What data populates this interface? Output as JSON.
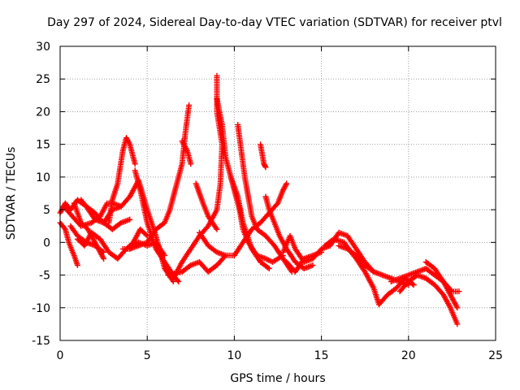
{
  "chart_data": {
    "type": "scatter",
    "title": "Day 297 of 2024, Sidereal Day-to-day VTEC variation (SDTVAR) for receiver ptvl",
    "xlabel": "GPS time / hours",
    "ylabel": "SDTVAR / TECUs",
    "xlim": [
      0,
      25
    ],
    "ylim": [
      -15,
      30
    ],
    "xticks": [
      0,
      5,
      10,
      15,
      20,
      25
    ],
    "yticks": [
      -15,
      -10,
      -5,
      0,
      5,
      10,
      15,
      20,
      25,
      30
    ],
    "grid": true,
    "marker": "+",
    "color": "#ff0000",
    "tracks": [
      [
        [
          0.0,
          4.5
        ],
        [
          0.3,
          6.0
        ],
        [
          0.6,
          5.0
        ],
        [
          1.0,
          6.5
        ],
        [
          1.5,
          5.5
        ],
        [
          2.0,
          4.5
        ],
        [
          2.5,
          3.0
        ],
        [
          3.0,
          5.0
        ],
        [
          3.5,
          5.5
        ],
        [
          4.0,
          7.0
        ],
        [
          4.5,
          9.5
        ],
        [
          5.0,
          5.0
        ],
        [
          5.5,
          1.0
        ],
        [
          6.0,
          -4.0
        ],
        [
          6.5,
          -6.0
        ]
      ],
      [
        [
          0.0,
          3.0
        ],
        [
          0.3,
          2.0
        ],
        [
          0.5,
          0.0
        ],
        [
          0.8,
          -2.0
        ],
        [
          1.0,
          -3.5
        ]
      ],
      [
        [
          0.2,
          5.5
        ],
        [
          0.7,
          4.0
        ],
        [
          1.2,
          2.5
        ],
        [
          1.8,
          3.0
        ],
        [
          2.3,
          4.0
        ],
        [
          2.7,
          6.0
        ],
        [
          3.0,
          6.0
        ],
        [
          3.5,
          5.5
        ]
      ],
      [
        [
          0.8,
          6.0
        ],
        [
          1.2,
          3.0
        ],
        [
          1.6,
          2.0
        ],
        [
          2.2,
          -1.0
        ],
        [
          2.5,
          -2.5
        ]
      ],
      [
        [
          1.0,
          0.5
        ],
        [
          1.4,
          -0.5
        ],
        [
          1.8,
          1.5
        ],
        [
          2.3,
          0.5
        ],
        [
          2.8,
          -1.5
        ],
        [
          3.3,
          -2.5
        ],
        [
          3.8,
          -1.0
        ],
        [
          4.2,
          0.0
        ],
        [
          4.6,
          2.0
        ],
        [
          5.0,
          1.0
        ]
      ],
      [
        [
          1.2,
          6.5
        ],
        [
          1.5,
          5.5
        ],
        [
          2.0,
          3.5
        ],
        [
          2.5,
          3.0
        ],
        [
          3.0,
          2.0
        ],
        [
          3.5,
          3.0
        ],
        [
          4.0,
          3.5
        ]
      ],
      [
        [
          0.6,
          2.5
        ],
        [
          1.0,
          1.0
        ],
        [
          1.5,
          0.0
        ],
        [
          2.0,
          -0.5
        ],
        [
          2.5,
          -1.5
        ]
      ],
      [
        [
          2.8,
          3.0
        ],
        [
          3.0,
          6.5
        ],
        [
          3.3,
          9.0
        ],
        [
          3.6,
          14.0
        ],
        [
          3.8,
          16.0
        ],
        [
          4.0,
          15.0
        ],
        [
          4.3,
          12.0
        ]
      ],
      [
        [
          3.6,
          -1.0
        ],
        [
          4.0,
          -1.0
        ],
        [
          4.5,
          -0.5
        ],
        [
          5.0,
          0.0
        ],
        [
          5.5,
          2.0
        ],
        [
          6.0,
          3.0
        ],
        [
          6.3,
          5.0
        ],
        [
          6.6,
          8.0
        ],
        [
          7.0,
          12.0
        ],
        [
          7.2,
          17.0
        ],
        [
          7.4,
          21.0
        ]
      ],
      [
        [
          4.3,
          11.0
        ],
        [
          4.6,
          8.0
        ],
        [
          5.0,
          3.0
        ],
        [
          5.5,
          -1.0
        ],
        [
          6.0,
          -3.0
        ],
        [
          6.5,
          -5.0
        ],
        [
          6.8,
          -6.0
        ]
      ],
      [
        [
          4.0,
          -1.0
        ],
        [
          4.5,
          0.0
        ],
        [
          5.0,
          -0.5
        ],
        [
          5.5,
          0.0
        ],
        [
          6.0,
          -2.0
        ]
      ],
      [
        [
          6.2,
          -5.0
        ],
        [
          7.0,
          -4.5
        ],
        [
          7.5,
          -3.5
        ],
        [
          8.0,
          -3.0
        ],
        [
          8.5,
          -4.5
        ],
        [
          9.0,
          -3.5
        ],
        [
          9.5,
          -2.0
        ]
      ],
      [
        [
          6.5,
          -5.5
        ],
        [
          7.0,
          -3.0
        ],
        [
          7.5,
          -1.0
        ],
        [
          8.0,
          1.0
        ],
        [
          8.5,
          2.5
        ],
        [
          9.0,
          5.0
        ],
        [
          9.2,
          9.0
        ],
        [
          9.3,
          15.0
        ],
        [
          9.0,
          20.0
        ],
        [
          9.0,
          25.5
        ]
      ],
      [
        [
          7.0,
          15.5
        ],
        [
          7.3,
          14.0
        ],
        [
          7.5,
          12.0
        ]
      ],
      [
        [
          7.8,
          9.0
        ],
        [
          8.2,
          6.0
        ],
        [
          8.5,
          4.0
        ],
        [
          9.0,
          2.0
        ]
      ],
      [
        [
          8.0,
          1.5
        ],
        [
          8.5,
          -0.5
        ],
        [
          9.0,
          -1.5
        ],
        [
          9.5,
          -2.0
        ],
        [
          10.0,
          -2.0
        ]
      ],
      [
        [
          9.0,
          22.0
        ],
        [
          9.3,
          18.0
        ],
        [
          9.5,
          13.0
        ],
        [
          9.8,
          10.0
        ],
        [
          10.2,
          7.0
        ],
        [
          10.5,
          3.0
        ],
        [
          11.0,
          -1.0
        ],
        [
          11.5,
          -3.0
        ],
        [
          12.0,
          -4.0
        ]
      ],
      [
        [
          9.8,
          10.0
        ],
        [
          10.0,
          8.0
        ],
        [
          10.3,
          5.0
        ],
        [
          10.5,
          2.0
        ],
        [
          10.8,
          0.0
        ],
        [
          11.3,
          -2.0
        ],
        [
          11.8,
          -2.5
        ],
        [
          12.2,
          -3.0
        ],
        [
          12.8,
          -2.0
        ]
      ],
      [
        [
          10.2,
          18.0
        ],
        [
          10.4,
          14.0
        ],
        [
          10.6,
          10.0
        ],
        [
          10.8,
          7.0
        ],
        [
          11.0,
          4.0
        ],
        [
          11.3,
          2.0
        ],
        [
          11.8,
          1.0
        ],
        [
          12.3,
          -0.5
        ],
        [
          12.8,
          -2.5
        ],
        [
          13.3,
          -4.5
        ]
      ],
      [
        [
          10.0,
          -2.0
        ],
        [
          10.5,
          0.0
        ],
        [
          11.0,
          2.0
        ],
        [
          11.5,
          3.0
        ],
        [
          12.0,
          4.5
        ],
        [
          12.5,
          6.0
        ],
        [
          12.8,
          8.0
        ],
        [
          13.0,
          9.0
        ]
      ],
      [
        [
          11.5,
          15.0
        ],
        [
          11.7,
          12.0
        ],
        [
          11.8,
          11.5
        ]
      ],
      [
        [
          11.8,
          7.0
        ],
        [
          12.0,
          5.0
        ],
        [
          12.3,
          3.0
        ],
        [
          12.6,
          1.0
        ],
        [
          13.0,
          -1.0
        ],
        [
          13.5,
          -3.0
        ],
        [
          14.0,
          -4.0
        ],
        [
          14.5,
          -3.5
        ]
      ],
      [
        [
          12.8,
          -1.5
        ],
        [
          13.2,
          1.0
        ],
        [
          13.5,
          -1.0
        ],
        [
          14.0,
          -3.0
        ],
        [
          14.5,
          -2.5
        ],
        [
          15.0,
          -1.0
        ],
        [
          15.5,
          -0.5
        ],
        [
          16.0,
          1.5
        ],
        [
          16.5,
          1.0
        ],
        [
          17.0,
          -1.0
        ],
        [
          17.5,
          -3.0
        ],
        [
          18.0,
          -4.5
        ],
        [
          18.5,
          -5.0
        ],
        [
          19.0,
          -5.5
        ],
        [
          19.5,
          -6.0
        ],
        [
          20.0,
          -6.5
        ]
      ],
      [
        [
          13.0,
          -3.0
        ],
        [
          13.5,
          -4.5
        ],
        [
          14.0,
          -2.5
        ],
        [
          14.5,
          -2.0
        ],
        [
          15.0,
          -1.5
        ]
      ],
      [
        [
          15.2,
          -0.5
        ],
        [
          15.7,
          0.5
        ],
        [
          16.3,
          0.0
        ],
        [
          16.7,
          -1.5
        ],
        [
          17.0,
          -2.5
        ],
        [
          17.5,
          -4.5
        ],
        [
          18.0,
          -7.0
        ],
        [
          18.3,
          -9.5
        ],
        [
          18.8,
          -8.0
        ],
        [
          19.3,
          -7.0
        ],
        [
          19.8,
          -5.5
        ],
        [
          20.3,
          -6.5
        ]
      ],
      [
        [
          16.0,
          -0.5
        ],
        [
          16.5,
          -1.0
        ],
        [
          17.0,
          -2.0
        ],
        [
          17.5,
          -3.5
        ],
        [
          18.0,
          -4.5
        ]
      ],
      [
        [
          19.0,
          -6.0
        ],
        [
          19.5,
          -5.5
        ],
        [
          20.0,
          -5.0
        ],
        [
          20.5,
          -4.5
        ],
        [
          21.0,
          -4.0
        ],
        [
          21.5,
          -5.0
        ],
        [
          22.0,
          -6.0
        ],
        [
          22.5,
          -7.5
        ],
        [
          22.9,
          -7.5
        ]
      ],
      [
        [
          19.5,
          -7.5
        ],
        [
          20.0,
          -6.0
        ],
        [
          20.5,
          -5.0
        ],
        [
          21.0,
          -5.5
        ],
        [
          21.5,
          -6.5
        ],
        [
          22.0,
          -8.0
        ],
        [
          22.4,
          -10.0
        ],
        [
          22.8,
          -12.5
        ]
      ],
      [
        [
          21.0,
          -3.0
        ],
        [
          21.5,
          -4.0
        ],
        [
          22.0,
          -6.0
        ],
        [
          22.5,
          -8.5
        ],
        [
          22.8,
          -10.0
        ]
      ]
    ]
  }
}
